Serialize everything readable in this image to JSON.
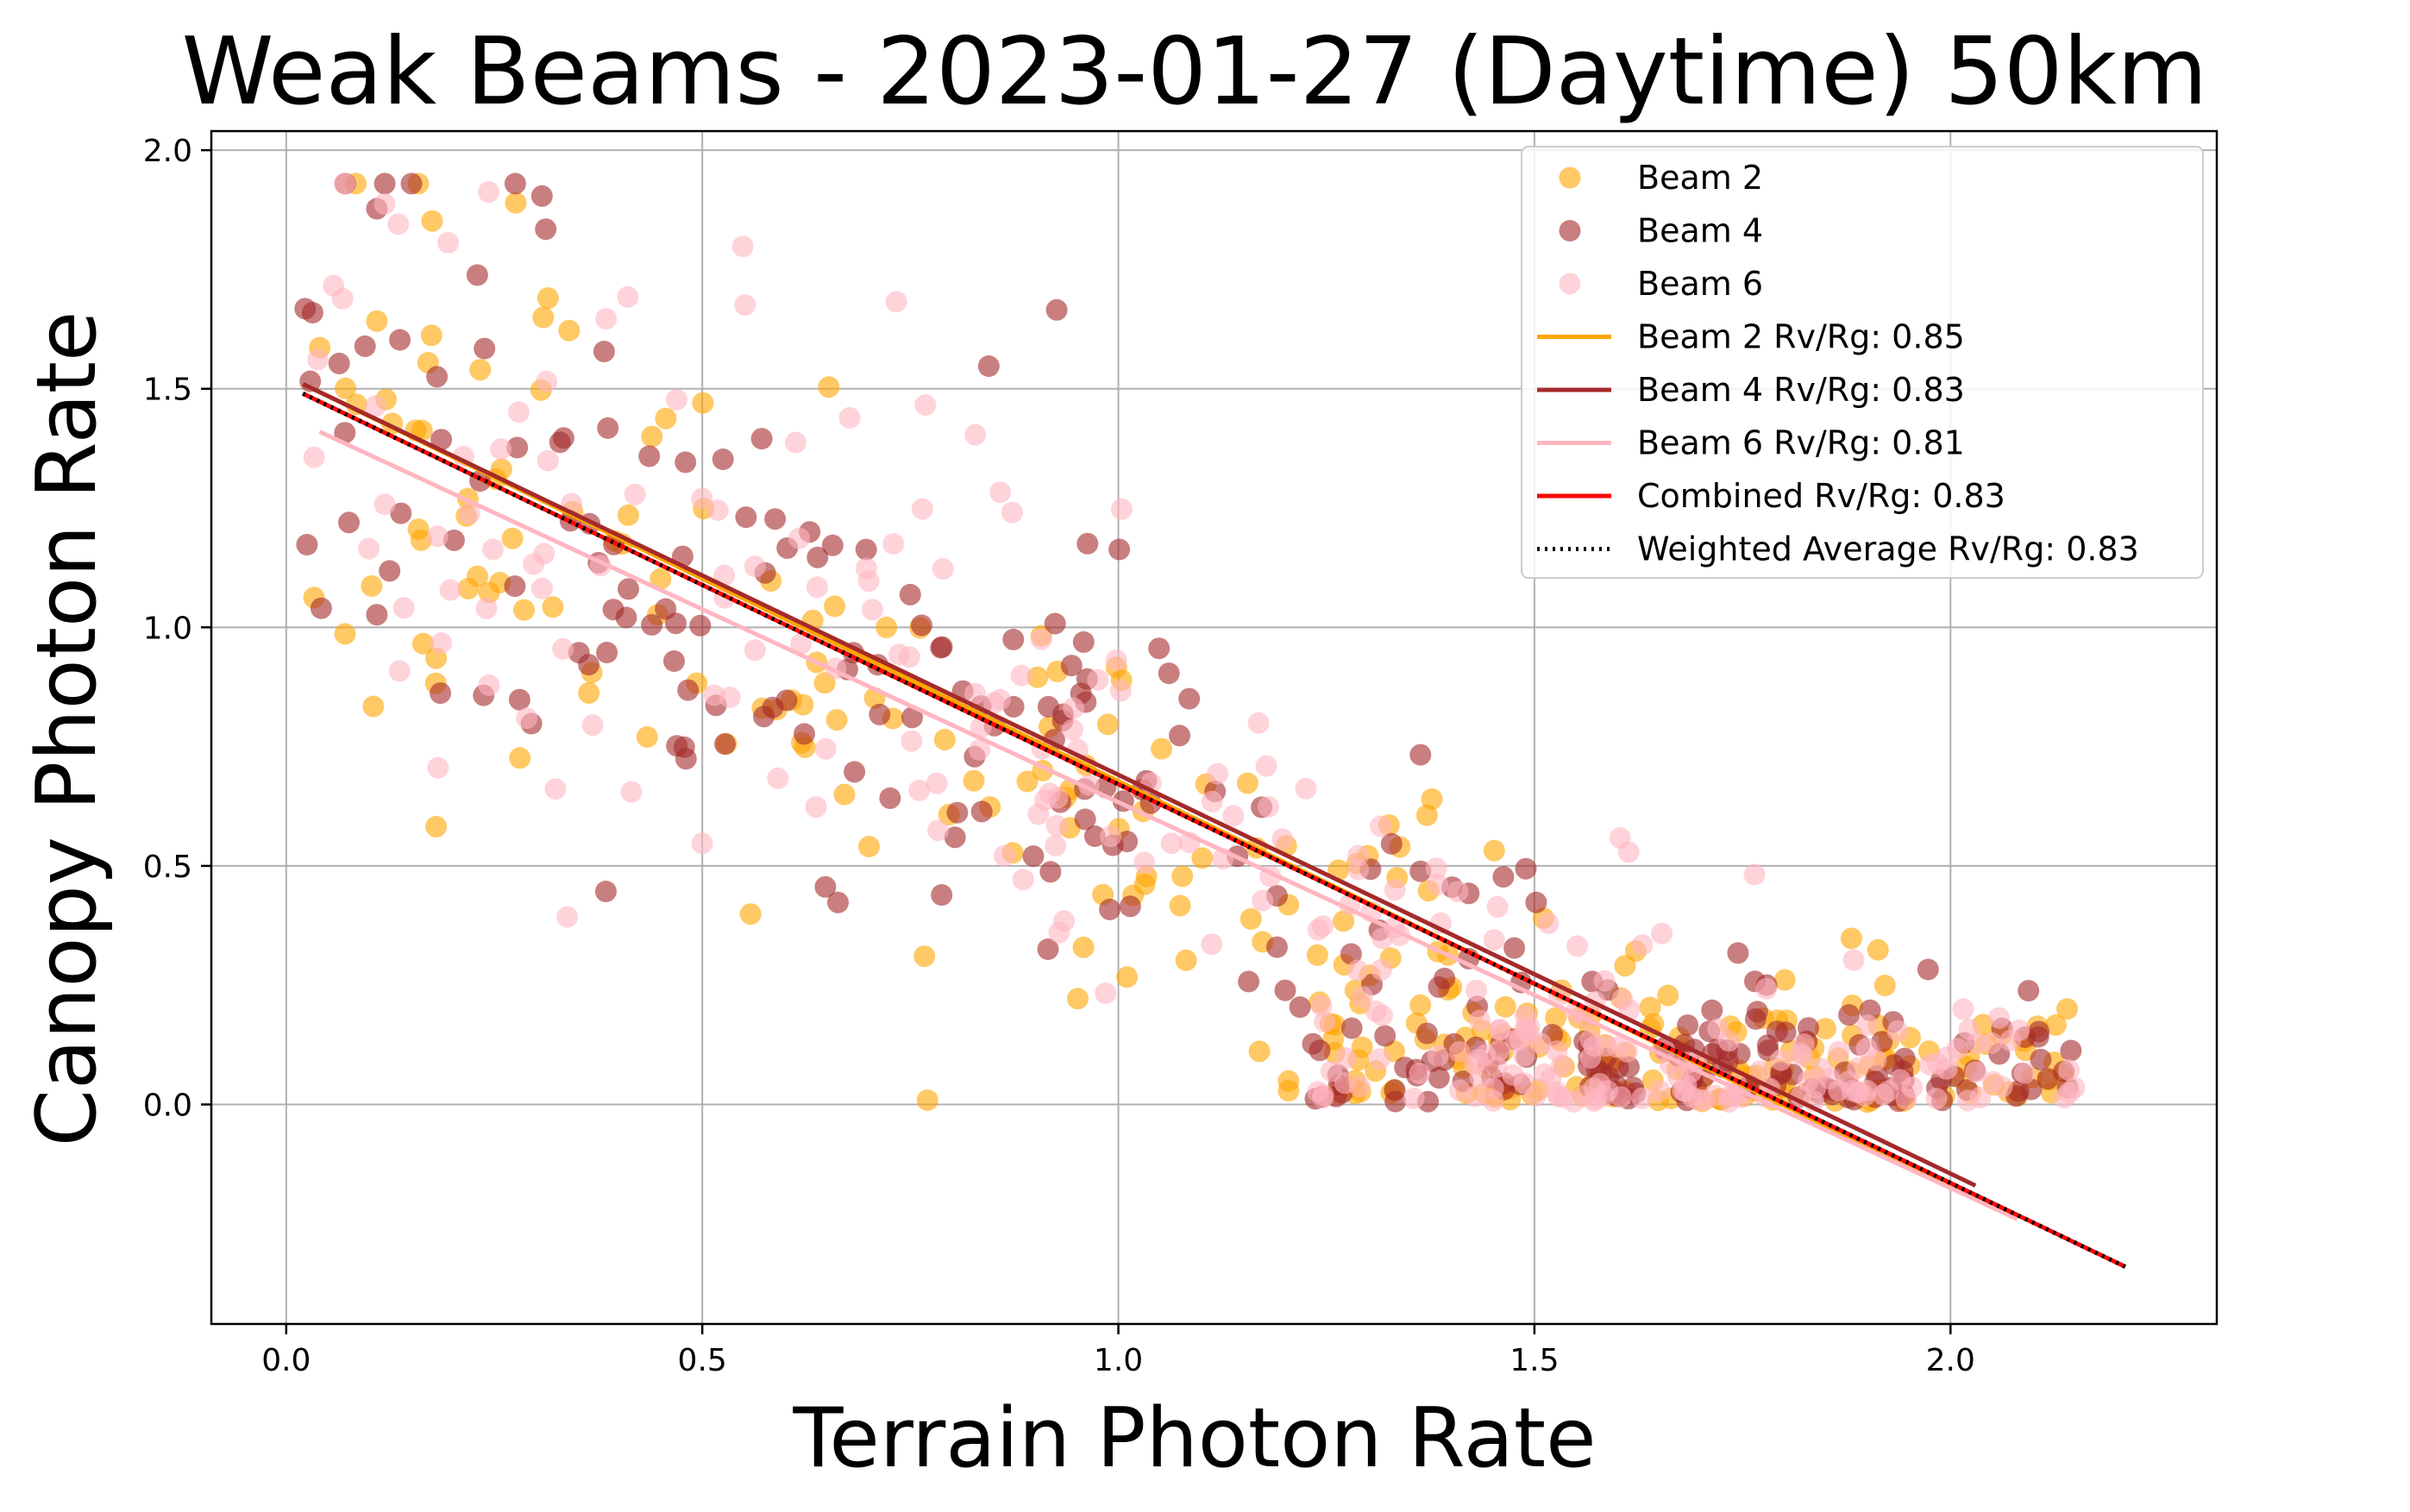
{
  "chart_data": {
    "type": "scatter",
    "title": "Weak Beams - 2023-01-27 (Daytime) 50km",
    "xlabel": "Terrain Photon Rate",
    "ylabel": "Canopy Photon Rate",
    "xlim": [
      -0.09,
      2.32
    ],
    "ylim": [
      -0.46,
      2.04
    ],
    "xticks": [
      0.0,
      0.5,
      1.0,
      1.5,
      2.0
    ],
    "xtick_labels": [
      "0.0",
      "0.5",
      "1.0",
      "1.5",
      "2.0"
    ],
    "yticks": [
      0.0,
      0.5,
      1.0,
      1.5,
      2.0
    ],
    "ytick_labels": [
      "0.0",
      "0.5",
      "1.0",
      "1.5",
      "2.0"
    ],
    "grid": true,
    "legend_position": "top-right",
    "series": [
      {
        "name": "Beam 2",
        "kind": "scatter",
        "color": "#FFA500",
        "opacity": 0.6,
        "seed": 11,
        "n": 300
      },
      {
        "name": "Beam 4",
        "kind": "scatter",
        "color": "#A52A2A",
        "opacity": 0.6,
        "seed": 23,
        "n": 300
      },
      {
        "name": "Beam 6",
        "kind": "scatter",
        "color": "#FFB6C1",
        "opacity": 0.6,
        "seed": 37,
        "n": 300
      }
    ],
    "fit_lines": [
      {
        "name": "Beam 2 Rv/Rg: 0.85",
        "color": "#FFA500",
        "style": "solid",
        "x": [
          0.02,
          2.08
        ],
        "y": [
          1.51,
          -0.24
        ]
      },
      {
        "name": "Beam 4 Rv/Rg: 0.83",
        "color": "#A52A2A",
        "style": "solid",
        "x": [
          0.02,
          2.03
        ],
        "y": [
          1.51,
          -0.17
        ]
      },
      {
        "name": "Beam 6 Rv/Rg: 0.81",
        "color": "#FFB6C1",
        "style": "solid",
        "x": [
          0.04,
          2.08
        ],
        "y": [
          1.41,
          -0.24
        ]
      },
      {
        "name": "Combined Rv/Rg: 0.83",
        "color": "#FF0000",
        "style": "solid",
        "x": [
          0.02,
          2.21
        ],
        "y": [
          1.49,
          -0.34
        ]
      },
      {
        "name": "Weighted Average Rv/Rg: 0.83",
        "color": "#000000",
        "style": "dotted",
        "x": [
          0.02,
          2.21
        ],
        "y": [
          1.49,
          -0.34
        ]
      }
    ]
  }
}
